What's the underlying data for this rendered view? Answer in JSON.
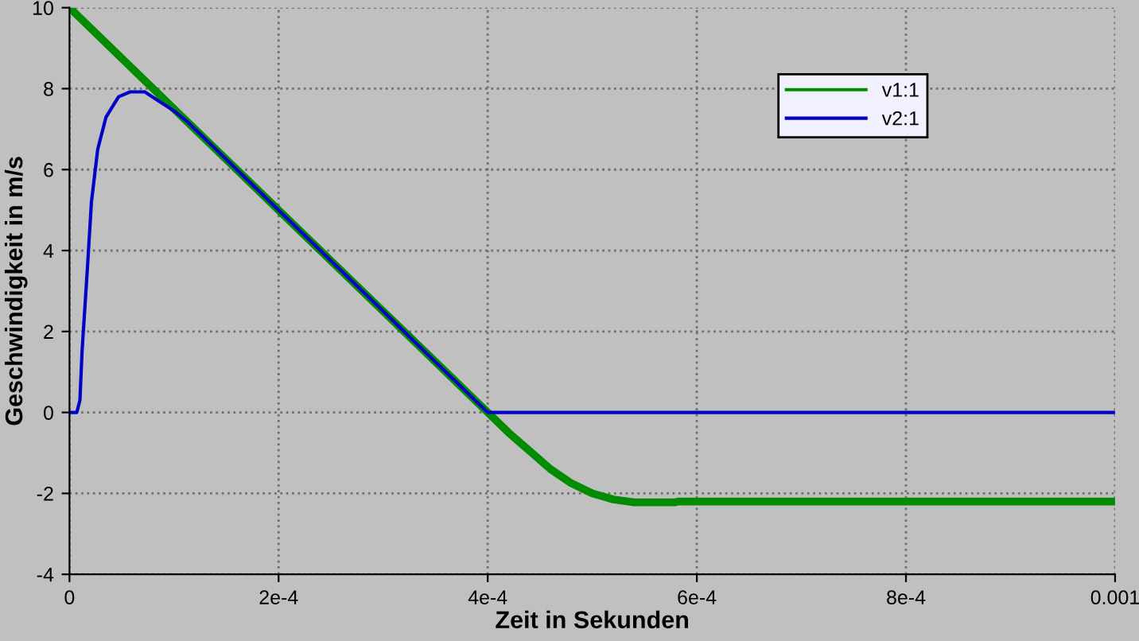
{
  "chart_data": {
    "type": "line",
    "xlabel": "Zeit in Sekunden",
    "ylabel": "Geschwindigkeit in m/s",
    "xlim": [
      0,
      0.001
    ],
    "ylim": [
      -4,
      10
    ],
    "xticks": [
      0,
      {
        "value": 0.0002,
        "label": "2e-4"
      },
      {
        "value": 0.0004,
        "label": "4e-4"
      },
      {
        "value": 0.0006,
        "label": "6e-4"
      },
      {
        "value": 0.0008,
        "label": "8e-4"
      },
      0.001
    ],
    "yticks": [
      -4,
      -2,
      0,
      2,
      4,
      6,
      8,
      10
    ],
    "grid": true,
    "legend": "top right",
    "marker": "none",
    "line_style": "solid",
    "series": [
      {
        "name": "v1:1",
        "color": "#008c00",
        "x": [
          0,
          0.0001,
          0.0002,
          0.0003,
          0.0004,
          0.00042,
          0.00044,
          0.00046,
          0.00048,
          0.0005,
          0.00052,
          0.00054,
          0.00058,
          0.000582,
          0.001
        ],
        "values": [
          10,
          7.5,
          5,
          2.5,
          0,
          -0.5,
          -0.95,
          -1.4,
          -1.75,
          -2.0,
          -2.15,
          -2.22,
          -2.22,
          -2.2,
          -2.2
        ]
      },
      {
        "name": "v2:1",
        "color": "#0000c8",
        "x": [
          0,
          7e-06,
          1e-05,
          1.2e-05,
          1.7e-05,
          2.1e-05,
          2.7e-05,
          3.5e-05,
          4.7e-05,
          5.8e-05,
          7.2e-05,
          8.5e-05,
          0.0001,
          0.000112,
          0.0002,
          0.0003,
          0.0004,
          0.001
        ],
        "values": [
          0,
          0,
          0.3,
          1.5,
          3.5,
          5.2,
          6.5,
          7.3,
          7.8,
          7.92,
          7.92,
          7.7,
          7.45,
          7.2,
          5,
          2.5,
          0,
          0
        ]
      }
    ]
  }
}
